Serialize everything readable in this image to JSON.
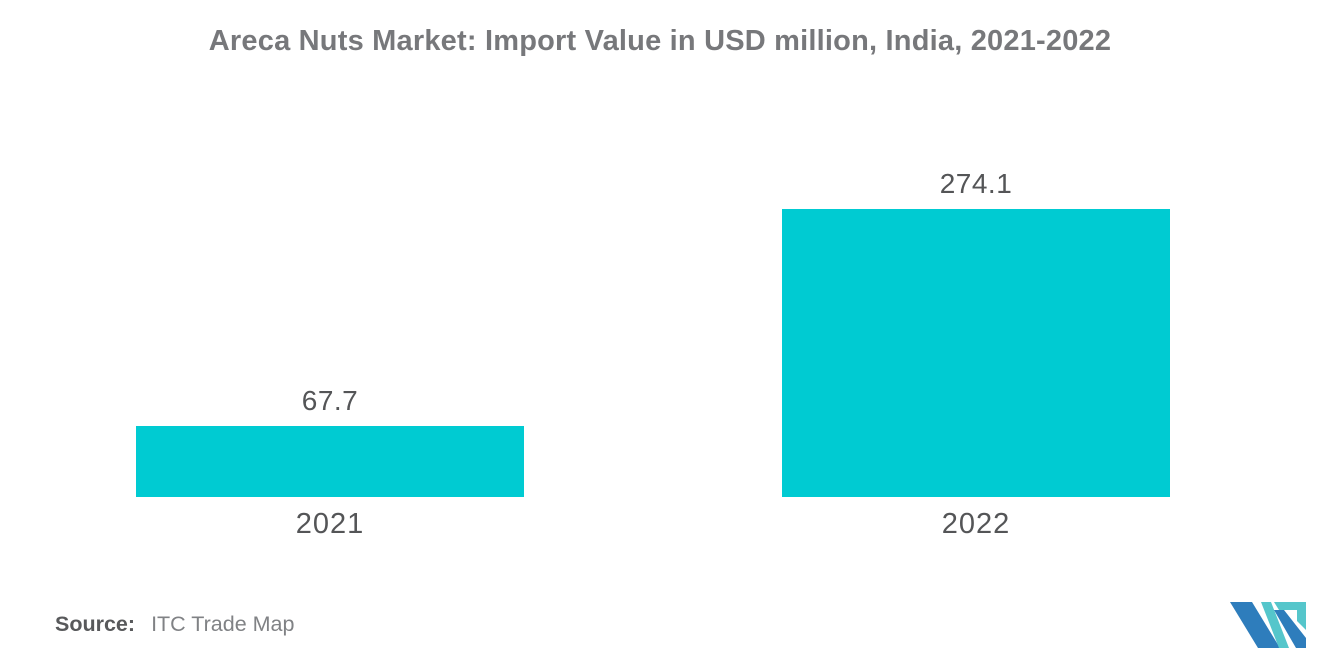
{
  "chart_data": {
    "type": "bar",
    "title": "Areca Nuts Market: Import Value in USD million, India, 2021-2022",
    "categories": [
      "2021",
      "2022"
    ],
    "values": [
      67.7,
      274.1
    ],
    "xlabel": "",
    "ylabel": "",
    "ylim": [
      0,
      300
    ],
    "grid": false,
    "legend": false,
    "orientation": "vertical",
    "bar_color": "#00CBD2"
  },
  "footer": {
    "source_label": "Source:",
    "source_text": "ITC Trade Map"
  },
  "ui": {
    "title_color": "#77787B",
    "label_color": "#545557",
    "background": "#FFFFFF",
    "logo_blue": "#2E7DBC",
    "logo_teal": "#55C6CB"
  }
}
